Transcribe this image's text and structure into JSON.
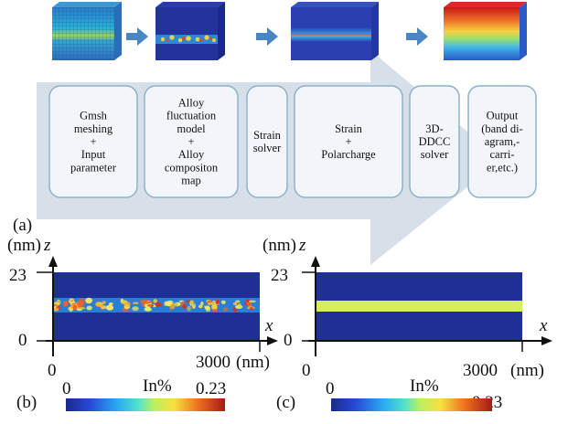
{
  "pipeline": {
    "steps": [
      {
        "lines": [
          "Gmsh",
          "meshing",
          "+",
          "Input",
          "parameter"
        ]
      },
      {
        "lines": [
          "Alloy",
          "fluctuation",
          "model",
          "+",
          "Alloy",
          "compositon",
          "map"
        ]
      },
      {
        "lines": [
          "Strain",
          "solver"
        ]
      },
      {
        "lines": [
          "Strain",
          "+",
          "Polarcharge"
        ]
      },
      {
        "lines": [
          "3D-",
          "DDCC",
          "solver"
        ]
      },
      {
        "lines": [
          "Output",
          "(band di-",
          "agram,-",
          "carri-",
          "er,etc.)"
        ]
      }
    ]
  },
  "panels": {
    "a_label": "(a)",
    "b_label": "(b)",
    "c_label": "(c)"
  },
  "plot_b": {
    "z_unit": "(nm)",
    "z_axis": "z",
    "x_axis": "x",
    "z_tick_top": "23",
    "z_tick_bottom": "0",
    "x_tick_left": "0",
    "x_tick_right": "3000",
    "x_unit": "(nm)",
    "colorbar_min": "0",
    "colorbar_title": "In%",
    "colorbar_max": "0.23"
  },
  "plot_c": {
    "z_unit": "(nm)",
    "z_axis": "z",
    "x_axis": "x",
    "z_tick_top": "23",
    "z_tick_bottom": "0",
    "x_tick_left": "0",
    "x_tick_right": "3000",
    "x_unit": "(nm)",
    "colorbar_min": "0",
    "colorbar_title": "In%",
    "colorbar_max": "0.23"
  },
  "colors": {
    "box_bg": "#f2f6fa",
    "box_border": "#8fb0cc",
    "arrow_blue": "#4a86c4",
    "band_bg": "#d6dee8",
    "field_dark_blue": "#1e2f96",
    "qw_yellow": "#d6ee5a"
  }
}
